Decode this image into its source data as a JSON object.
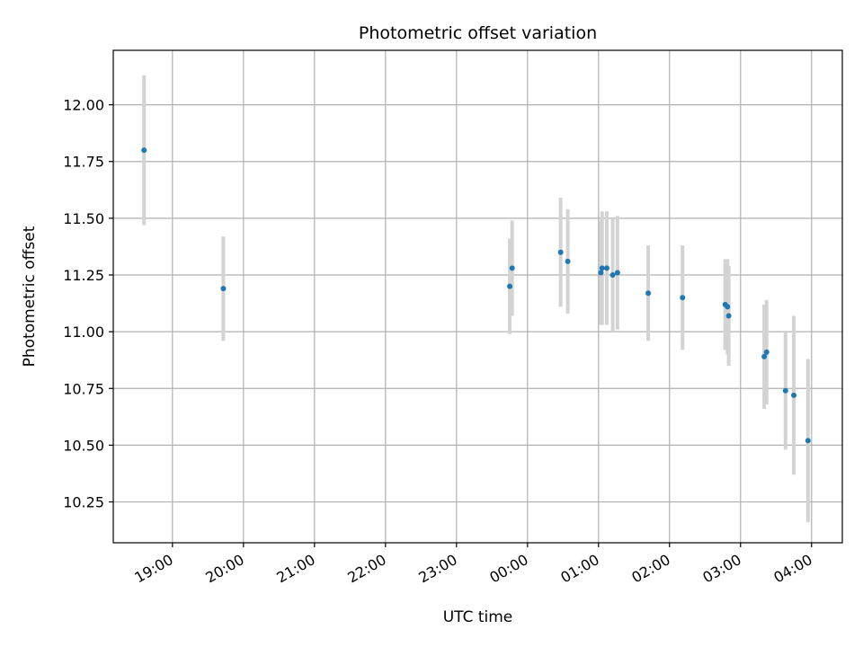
{
  "chart_data": {
    "type": "scatter",
    "title": "Photometric offset variation",
    "xlabel": "UTC time",
    "ylabel": "Photometric offset",
    "x_axis": {
      "kind": "time",
      "range": [
        "18:10",
        "04:26"
      ],
      "ticks": [
        "19:00",
        "20:00",
        "21:00",
        "22:00",
        "23:00",
        "00:00",
        "01:00",
        "02:00",
        "03:00",
        "04:00"
      ]
    },
    "y_axis": {
      "range": [
        10.07,
        12.24
      ],
      "ticks": [
        10.25,
        10.5,
        10.75,
        11.0,
        11.25,
        11.5,
        11.75,
        12.0
      ],
      "tick_labels": [
        "10.25",
        "10.50",
        "10.75",
        "11.00",
        "11.25",
        "11.50",
        "11.75",
        "12.00"
      ]
    },
    "grid": true,
    "colors": {
      "points": "#1f77b4",
      "error_bars": "#d3d3d3",
      "grid": "#b0b0b0"
    },
    "points": [
      {
        "x": "18:36",
        "y": 11.8,
        "err": 0.33
      },
      {
        "x": "19:43",
        "y": 11.19,
        "err": 0.23
      },
      {
        "x": "23:45",
        "y": 11.2,
        "err": 0.21
      },
      {
        "x": "23:47",
        "y": 11.28,
        "err": 0.21
      },
      {
        "x": "00:28",
        "y": 11.35,
        "err": 0.24
      },
      {
        "x": "00:34",
        "y": 11.31,
        "err": 0.23
      },
      {
        "x": "01:02",
        "y": 11.26,
        "err": 0.23
      },
      {
        "x": "01:03",
        "y": 11.28,
        "err": 0.25
      },
      {
        "x": "01:07",
        "y": 11.28,
        "err": 0.25
      },
      {
        "x": "01:12",
        "y": 11.25,
        "err": 0.25
      },
      {
        "x": "01:16",
        "y": 11.26,
        "err": 0.25
      },
      {
        "x": "01:42",
        "y": 11.17,
        "err": 0.21
      },
      {
        "x": "02:11",
        "y": 11.15,
        "err": 0.23
      },
      {
        "x": "02:47",
        "y": 11.12,
        "err": 0.2
      },
      {
        "x": "02:49",
        "y": 11.11,
        "err": 0.21
      },
      {
        "x": "02:50",
        "y": 11.07,
        "err": 0.22
      },
      {
        "x": "03:20",
        "y": 10.89,
        "err": 0.23
      },
      {
        "x": "03:22",
        "y": 10.91,
        "err": 0.23
      },
      {
        "x": "03:38",
        "y": 10.74,
        "err": 0.26
      },
      {
        "x": "03:45",
        "y": 10.72,
        "err": 0.35
      },
      {
        "x": "03:57",
        "y": 10.52,
        "err": 0.36
      }
    ]
  }
}
